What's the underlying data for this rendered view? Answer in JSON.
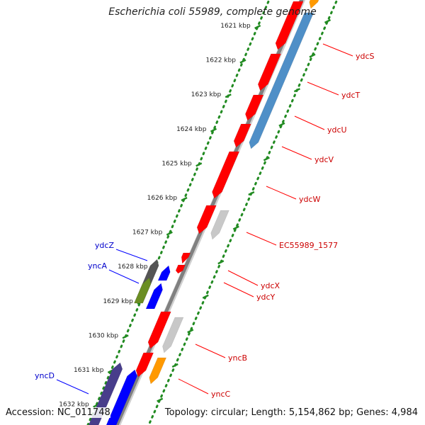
{
  "title": "Escherichia coli 55989, complete genome",
  "accession_text": "Accession: NC_011748",
  "summary_text": "Topology: circular; Length: 5,154,862 bp; Genes: 4,984",
  "tick_unit": "kbp",
  "ticks": [
    1621,
    1622,
    1623,
    1624,
    1625,
    1626,
    1627,
    1628,
    1629,
    1630,
    1631,
    1632
  ],
  "colors": {
    "forward_gene": "#ff0000",
    "forward_label": "#cc0000",
    "reverse_gene": "#0000ff",
    "reverse_label": "#0000cc",
    "rna_steelblue": "#4f8fc7",
    "pseudo_gray": "#c8c8c8",
    "dark_gray": "#555555",
    "olive": "#6b8e23",
    "orange": "#ff9900",
    "dark_slate": "#483d8b",
    "axis_dots": "#228b22",
    "backbone": "#808080"
  },
  "genes": [
    {
      "label": "ydcS",
      "strand": "forward"
    },
    {
      "label": "ydcT",
      "strand": "forward"
    },
    {
      "label": "ydcU",
      "strand": "forward"
    },
    {
      "label": "ydcV",
      "strand": "forward"
    },
    {
      "label": "ydcW",
      "strand": "forward"
    },
    {
      "label": "EC55989_1577",
      "strand": "forward"
    },
    {
      "label": "ydcX",
      "strand": "forward"
    },
    {
      "label": "ydcY",
      "strand": "forward"
    },
    {
      "label": "yncB",
      "strand": "forward"
    },
    {
      "label": "yncC",
      "strand": "forward"
    },
    {
      "label": "ydcZ",
      "strand": "reverse"
    },
    {
      "label": "yncA",
      "strand": "reverse"
    },
    {
      "label": "yncD",
      "strand": "reverse"
    }
  ]
}
